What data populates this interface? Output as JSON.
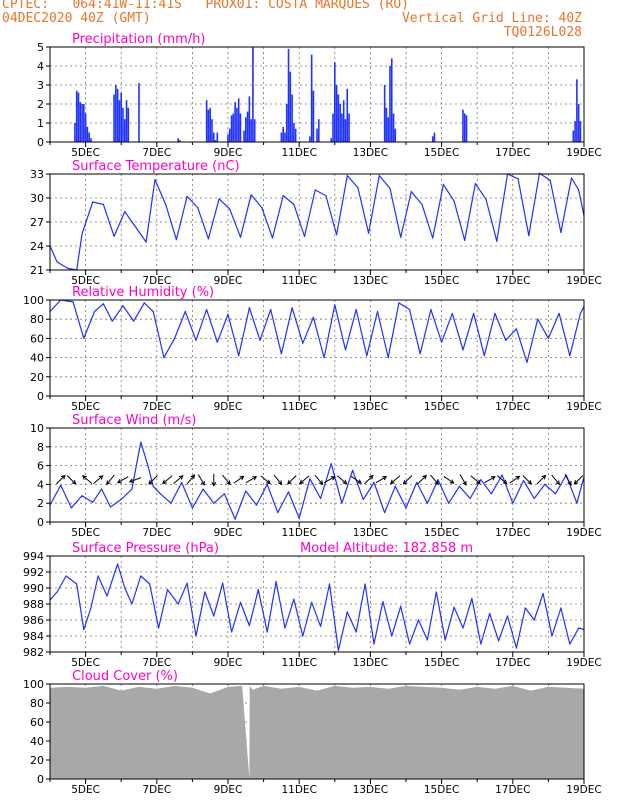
{
  "header": {
    "line1_left": "CPTEC:   064:41W-11:41S   PROX01: COSTA MARQUES (RO)",
    "line2_left": "04DEC2020 40Z (GMT)",
    "line2_right": "Vertical Grid Line: 40Z",
    "line3_right": "TQ0126L028"
  },
  "colors": {
    "header": "#e8742a",
    "title": "#ff00c8",
    "series": "#1f32ff",
    "cloud": "#a8a8a8",
    "arrow": "#000000"
  },
  "x_tick_labels": [
    "5DEC",
    "7DEC",
    "9DEC",
    "11DEC",
    "13DEC",
    "15DEC",
    "17DEC",
    "19DEC"
  ],
  "chart_data": [
    {
      "type": "bar",
      "title": "Precipitation (mm/h)",
      "x_range_days": [
        4.0,
        19.0
      ],
      "ylim": [
        0,
        5
      ],
      "y_ticks": [
        "0",
        "1",
        "2",
        "3",
        "4",
        "5"
      ],
      "grid": true,
      "x": [
        4.7,
        4.75,
        4.8,
        4.85,
        4.9,
        4.95,
        5.0,
        5.05,
        5.1,
        5.15,
        5.8,
        5.85,
        5.9,
        5.95,
        6.0,
        6.05,
        6.1,
        6.15,
        6.2,
        6.5,
        7.6,
        7.65,
        8.4,
        8.45,
        8.5,
        8.55,
        8.6,
        8.65,
        8.7,
        9.0,
        9.05,
        9.1,
        9.15,
        9.2,
        9.25,
        9.3,
        9.35,
        9.45,
        9.5,
        9.55,
        9.6,
        9.65,
        9.7,
        9.75,
        10.5,
        10.55,
        10.6,
        10.65,
        10.7,
        10.75,
        10.8,
        10.85,
        10.9,
        11.3,
        11.35,
        11.4,
        11.5,
        11.55,
        11.9,
        11.95,
        12.0,
        12.05,
        12.1,
        12.15,
        12.2,
        12.25,
        12.3,
        12.35,
        12.4,
        13.4,
        13.45,
        13.5,
        13.55,
        13.6,
        13.65,
        13.7,
        14.75,
        14.8,
        15.6,
        15.65,
        15.7,
        18.7,
        18.75,
        18.8,
        18.85,
        18.9
      ],
      "values": [
        1.0,
        2.7,
        2.6,
        2.1,
        2.0,
        2.0,
        1.5,
        0.8,
        0.5,
        0.2,
        2.5,
        3.0,
        2.8,
        2.2,
        2.6,
        1.8,
        1.2,
        2.2,
        1.8,
        3.1,
        0.2,
        0.1,
        2.2,
        1.7,
        1.8,
        1.2,
        0.5,
        0.1,
        0.5,
        0.4,
        0.7,
        1.4,
        1.5,
        2.1,
        1.8,
        2.3,
        1.5,
        0.6,
        1.3,
        1.6,
        2.4,
        1.2,
        5.0,
        1.2,
        0.5,
        0.8,
        0.5,
        2.0,
        4.9,
        3.7,
        2.5,
        1.0,
        0.7,
        0.3,
        4.6,
        2.7,
        0.7,
        1.2,
        0.2,
        1.5,
        4.2,
        3.0,
        2.5,
        2.0,
        1.5,
        2.2,
        1.2,
        2.8,
        1.5,
        3.0,
        1.8,
        1.3,
        4.0,
        4.4,
        1.5,
        0.7,
        0.3,
        0.5,
        1.7,
        1.5,
        1.4,
        0.6,
        1.1,
        3.3,
        2.0,
        1.1
      ]
    },
    {
      "type": "line",
      "title": "Surface Temperature (nC)",
      "x_range_days": [
        4.0,
        19.0
      ],
      "ylim": [
        21,
        33
      ],
      "y_ticks": [
        "21",
        "24",
        "27",
        "30",
        "33"
      ],
      "grid": true,
      "x": [
        4.0,
        4.2,
        4.5,
        4.75,
        4.9,
        5.2,
        5.5,
        5.8,
        6.1,
        6.35,
        6.7,
        6.95,
        7.25,
        7.55,
        7.85,
        8.15,
        8.45,
        8.75,
        9.05,
        9.35,
        9.65,
        9.95,
        10.25,
        10.55,
        10.85,
        11.15,
        11.45,
        11.75,
        12.05,
        12.35,
        12.65,
        12.95,
        13.25,
        13.55,
        13.85,
        14.15,
        14.45,
        14.75,
        15.05,
        15.35,
        15.65,
        15.95,
        16.25,
        16.55,
        16.85,
        17.15,
        17.45,
        17.75,
        18.05,
        18.35,
        18.65,
        18.85,
        19.0
      ],
      "values": [
        24,
        22,
        21.2,
        21,
        25.5,
        29.5,
        29.2,
        25.2,
        28.3,
        26.7,
        24.5,
        32.3,
        29.2,
        24.8,
        30.2,
        28.8,
        24.9,
        29.9,
        28.6,
        25.1,
        30.4,
        28.8,
        25.0,
        30.3,
        29.2,
        25.2,
        31.0,
        30.3,
        25.4,
        32.8,
        31.3,
        25.6,
        32.8,
        31.2,
        25.1,
        30.8,
        29.2,
        25.0,
        31.7,
        29.6,
        24.7,
        31.8,
        29.8,
        24.6,
        33.0,
        32.4,
        25.3,
        33.1,
        32.2,
        25.7,
        32.5,
        31.0,
        27.8
      ]
    },
    {
      "type": "line",
      "title": "Relative Humidity (%)",
      "x_range_days": [
        4.0,
        19.0
      ],
      "ylim": [
        0,
        100
      ],
      "y_ticks": [
        "0",
        "20",
        "40",
        "60",
        "80",
        "100"
      ],
      "grid": true,
      "x": [
        4.0,
        4.3,
        4.65,
        4.95,
        5.25,
        5.5,
        5.75,
        6.05,
        6.35,
        6.65,
        6.9,
        7.2,
        7.5,
        7.8,
        8.1,
        8.4,
        8.7,
        9.0,
        9.3,
        9.6,
        9.9,
        10.2,
        10.5,
        10.8,
        11.1,
        11.4,
        11.7,
        12.0,
        12.3,
        12.6,
        12.9,
        13.2,
        13.5,
        13.8,
        14.1,
        14.4,
        14.7,
        15.0,
        15.3,
        15.6,
        15.9,
        16.2,
        16.5,
        16.8,
        17.1,
        17.4,
        17.7,
        18.0,
        18.3,
        18.6,
        18.9,
        19.0
      ],
      "values": [
        88,
        100,
        98,
        60,
        88,
        96,
        78,
        94,
        78,
        97,
        88,
        40,
        60,
        88,
        58,
        90,
        56,
        85,
        42,
        92,
        58,
        90,
        44,
        92,
        55,
        82,
        40,
        95,
        48,
        90,
        42,
        88,
        40,
        97,
        90,
        44,
        90,
        56,
        86,
        48,
        86,
        42,
        86,
        58,
        70,
        35,
        80,
        60,
        86,
        42,
        86,
        93
      ]
    },
    {
      "type": "line",
      "title": "Surface Wind (m/s)",
      "x_range_days": [
        4.0,
        19.0
      ],
      "ylim": [
        0,
        10
      ],
      "y_ticks": [
        "0",
        "2",
        "4",
        "6",
        "8",
        "10"
      ],
      "grid": true,
      "x": [
        4.0,
        4.3,
        4.6,
        4.9,
        5.2,
        5.45,
        5.7,
        6.0,
        6.3,
        6.55,
        6.75,
        6.9,
        7.1,
        7.4,
        7.7,
        8.0,
        8.3,
        8.6,
        8.9,
        9.2,
        9.5,
        9.8,
        10.1,
        10.4,
        10.7,
        11.0,
        11.3,
        11.6,
        11.9,
        12.2,
        12.5,
        12.8,
        13.1,
        13.4,
        13.7,
        14.0,
        14.3,
        14.6,
        14.9,
        15.2,
        15.5,
        15.8,
        16.1,
        16.4,
        16.7,
        17.0,
        17.3,
        17.6,
        17.9,
        18.2,
        18.5,
        18.8,
        19.0
      ],
      "values": [
        1.8,
        3.9,
        1.5,
        2.8,
        2.1,
        3.5,
        1.6,
        2.4,
        3.5,
        8.5,
        6.0,
        3.8,
        3.0,
        2.0,
        4.2,
        1.5,
        3.5,
        2.0,
        3.0,
        0.3,
        3.3,
        1.8,
        4.0,
        1.0,
        3.2,
        0.4,
        4.6,
        2.5,
        6.2,
        2.0,
        5.5,
        2.4,
        4.2,
        1.0,
        3.8,
        1.5,
        4.2,
        2.0,
        4.5,
        2.0,
        3.8,
        2.5,
        4.5,
        3.0,
        5.0,
        2.0,
        4.4,
        2.5,
        4.0,
        3.0,
        5.0,
        2.0,
        4.8
      ],
      "arrow_x": [
        4.3,
        4.6,
        5.05,
        5.35,
        5.7,
        6.05,
        6.4,
        6.9,
        7.3,
        7.6,
        7.95,
        8.25,
        8.6,
        8.95,
        9.3,
        9.65,
        10.05,
        10.4,
        10.8,
        11.15,
        11.55,
        11.85,
        12.2,
        12.6,
        12.95,
        13.3,
        13.7,
        14.05,
        14.45,
        14.8,
        15.2,
        15.6,
        15.95,
        16.35,
        16.7,
        17.05,
        17.4,
        17.8,
        18.2,
        18.55,
        18.85
      ],
      "arrow_dir_deg": [
        45,
        315,
        140,
        40,
        230,
        210,
        200,
        225,
        220,
        40,
        50,
        300,
        270,
        310,
        35,
        30,
        320,
        310,
        225,
        220,
        310,
        30,
        320,
        325,
        45,
        30,
        220,
        225,
        45,
        310,
        325,
        300,
        320,
        30,
        320,
        35,
        315,
        45,
        310,
        300,
        225
      ]
    },
    {
      "type": "line",
      "title": "Surface Pressure (hPa)",
      "annotation": "Model Altitude: 182.858 m",
      "x_range_days": [
        4.0,
        19.0
      ],
      "ylim": [
        982,
        994
      ],
      "y_ticks": [
        "982",
        "984",
        "986",
        "988",
        "990",
        "992",
        "994"
      ],
      "grid": true,
      "x": [
        4.0,
        4.2,
        4.45,
        4.75,
        4.95,
        5.15,
        5.35,
        5.6,
        5.9,
        6.1,
        6.3,
        6.55,
        6.8,
        7.05,
        7.3,
        7.6,
        7.85,
        8.1,
        8.35,
        8.6,
        8.85,
        9.1,
        9.35,
        9.6,
        9.85,
        10.1,
        10.35,
        10.6,
        10.85,
        11.1,
        11.35,
        11.6,
        11.85,
        12.1,
        12.35,
        12.6,
        12.85,
        13.1,
        13.35,
        13.6,
        13.85,
        14.1,
        14.35,
        14.6,
        14.85,
        15.1,
        15.35,
        15.6,
        15.85,
        16.1,
        16.35,
        16.6,
        16.85,
        17.1,
        17.35,
        17.6,
        17.85,
        18.1,
        18.35,
        18.6,
        18.85,
        19.0
      ],
      "values": [
        988.5,
        989.5,
        991.5,
        990.5,
        984.8,
        987.5,
        991.5,
        989,
        993,
        990,
        988,
        991.5,
        990.5,
        985,
        989.8,
        988,
        990.6,
        984,
        989.5,
        986.5,
        990.6,
        984.5,
        988.2,
        985.3,
        989.8,
        984.5,
        990.8,
        985,
        988.6,
        984,
        988.2,
        985.2,
        990.5,
        982.2,
        987,
        984.5,
        990.5,
        983,
        988.3,
        984,
        987.7,
        983,
        986,
        983.5,
        989.5,
        983.5,
        987.6,
        985,
        988.7,
        983,
        986.8,
        983.4,
        986.5,
        982.5,
        987.5,
        986,
        989.3,
        984,
        987.5,
        983,
        985,
        984.8
      ]
    },
    {
      "type": "area",
      "title": "Cloud Cover (%)",
      "x_range_days": [
        4.0,
        19.0
      ],
      "ylim": [
        0,
        100
      ],
      "y_ticks": [
        "0",
        "20",
        "40",
        "60",
        "80",
        "100"
      ],
      "grid": true,
      "x": [
        4.0,
        4.5,
        5.0,
        5.5,
        6.0,
        6.5,
        7.0,
        7.5,
        8.0,
        8.5,
        9.0,
        9.4,
        9.6,
        9.61,
        9.7,
        10.0,
        10.5,
        11.0,
        11.5,
        12.0,
        12.5,
        13.0,
        13.5,
        14.0,
        14.5,
        15.0,
        15.5,
        16.0,
        16.5,
        17.0,
        17.5,
        18.0,
        18.5,
        19.0
      ],
      "values": [
        96,
        97,
        96,
        98,
        93,
        97,
        95,
        98,
        96,
        90,
        97,
        98,
        0,
        98,
        94,
        98,
        95,
        97,
        93,
        98,
        96,
        97,
        95,
        98,
        97,
        96,
        94,
        97,
        95,
        98,
        93,
        97,
        96,
        95
      ]
    }
  ]
}
